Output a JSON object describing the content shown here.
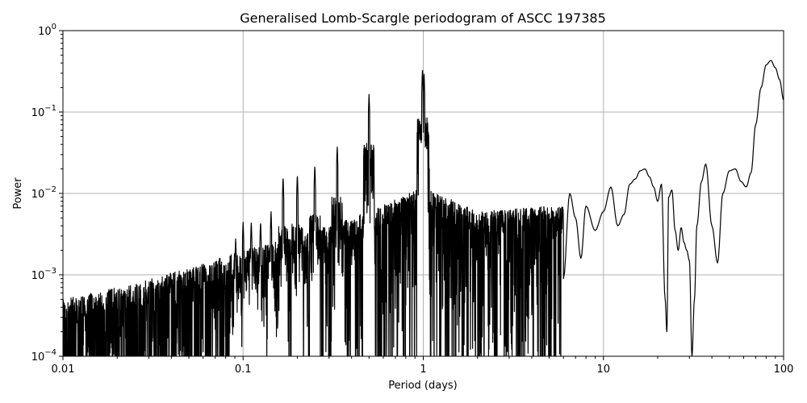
{
  "chart_data": {
    "type": "line",
    "title": "Generalised Lomb-Scargle periodogram of ASCC 197385",
    "xlabel": "Period (days)",
    "ylabel": "Power",
    "xscale": "log",
    "yscale": "log",
    "xlim": [
      0.01,
      100
    ],
    "ylim": [
      0.0001,
      1
    ],
    "x_ticks": [
      0.01,
      0.1,
      1,
      10,
      100
    ],
    "x_tick_labels": [
      "0.01",
      "0.1",
      "1",
      "10",
      "100"
    ],
    "y_ticks": [
      0.0001,
      0.001,
      0.01,
      0.1,
      1
    ],
    "y_tick_labels": [
      {
        "base": "10",
        "exp": "−4"
      },
      {
        "base": "10",
        "exp": "−3"
      },
      {
        "base": "10",
        "exp": "−2"
      },
      {
        "base": "10",
        "exp": "−1"
      },
      {
        "base": "10",
        "exp": "0"
      }
    ],
    "grid": true,
    "legend": null,
    "line_color": "#000000",
    "grid_color": "#b0b0b0",
    "noise_envelope": {
      "description": "Dense noisy region between 0.01 and ~6 days; upper envelope rises with period",
      "x": [
        0.01,
        0.02,
        0.05,
        0.1,
        0.2,
        0.5,
        1,
        2,
        5
      ],
      "upper_power": [
        0.0005,
        0.0007,
        0.0012,
        0.002,
        0.003,
        0.006,
        0.012,
        0.006,
        0.007
      ]
    },
    "harmonic_peaks": [
      {
        "period": 0.0909,
        "power": 0.0028
      },
      {
        "period": 0.1,
        "power": 0.0045
      },
      {
        "period": 0.111,
        "power": 0.0045
      },
      {
        "period": 0.125,
        "power": 0.0045
      },
      {
        "period": 0.1429,
        "power": 0.006
      },
      {
        "period": 0.1667,
        "power": 0.016
      },
      {
        "period": 0.2,
        "power": 0.017
      },
      {
        "period": 0.25,
        "power": 0.022
      },
      {
        "period": 0.333,
        "power": 0.038
      },
      {
        "period": 0.5,
        "power": 0.165
      },
      {
        "period": 0.99,
        "power": 0.34
      },
      {
        "period": 1.01,
        "power": 0.3
      }
    ],
    "smooth_tail": {
      "period": [
        6,
        6.5,
        7,
        7.5,
        8,
        9,
        10,
        11,
        12,
        13,
        14,
        15,
        16,
        17,
        18,
        19,
        20,
        21,
        22,
        22.5,
        23,
        24,
        25,
        26,
        27,
        28,
        29,
        30,
        31,
        32,
        33,
        35,
        37,
        40,
        43,
        46,
        50,
        54,
        58,
        62,
        66,
        70,
        75,
        80,
        85,
        90,
        95,
        100
      ],
      "power": [
        0.0009,
        0.01,
        0.005,
        0.0016,
        0.007,
        0.0035,
        0.006,
        0.012,
        0.004,
        0.0055,
        0.013,
        0.015,
        0.019,
        0.02,
        0.016,
        0.012,
        0.008,
        0.013,
        0.0005,
        0.0002,
        0.009,
        0.011,
        0.0035,
        0.002,
        0.0038,
        0.0025,
        0.002,
        0.0015,
        0.0001,
        0.0005,
        0.004,
        0.014,
        0.023,
        0.004,
        0.0014,
        0.01,
        0.019,
        0.02,
        0.014,
        0.012,
        0.018,
        0.07,
        0.2,
        0.38,
        0.43,
        0.35,
        0.25,
        0.14
      ]
    }
  }
}
